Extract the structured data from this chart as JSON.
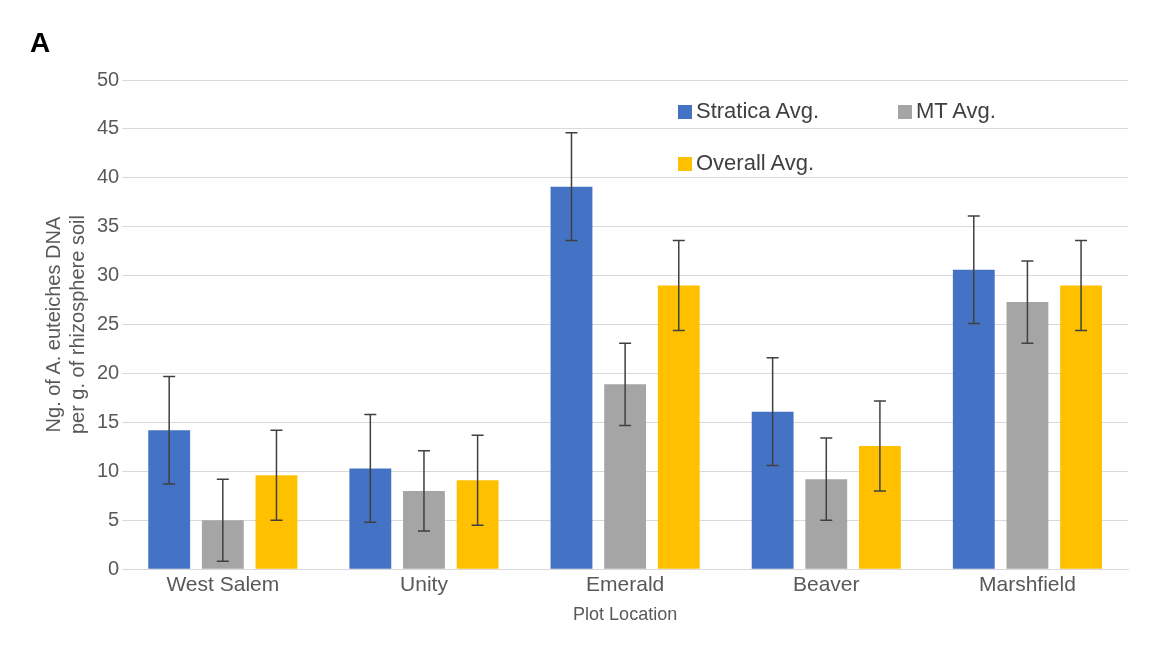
{
  "chart_data": {
    "type": "bar",
    "annotations": [
      "A"
    ],
    "xlabel": "Plot Location",
    "ylabel": "Ng. of A. euteiches DNA per g. of rhizosphere soil",
    "categories": [
      "West Salem",
      "Unity",
      "Emerald",
      "Beaver",
      "Marshfield"
    ],
    "series": [
      {
        "name": "Stratica Avg.",
        "color": "#4472c4",
        "values": [
          14.2,
          10.3,
          39.1,
          16.1,
          30.6
        ],
        "errors": [
          5.5,
          5.5,
          5.5,
          5.5,
          5.5
        ]
      },
      {
        "name": "MT Avg.",
        "color": "#a5a5a5",
        "values": [
          5.0,
          8.0,
          18.9,
          9.2,
          27.3
        ],
        "errors": [
          4.2,
          4.1,
          4.2,
          4.2,
          4.2
        ]
      },
      {
        "name": "Overall Avg.",
        "color": "#ffc000",
        "values": [
          9.6,
          9.1,
          29.0,
          12.6,
          29.0
        ],
        "errors": [
          4.6,
          4.6,
          4.6,
          4.6,
          4.6
        ]
      }
    ],
    "ylim": [
      0,
      50
    ],
    "yticks": [
      0,
      5,
      10,
      15,
      20,
      25,
      30,
      35,
      40,
      45,
      50
    ],
    "grid": "y",
    "legend": "top right"
  }
}
